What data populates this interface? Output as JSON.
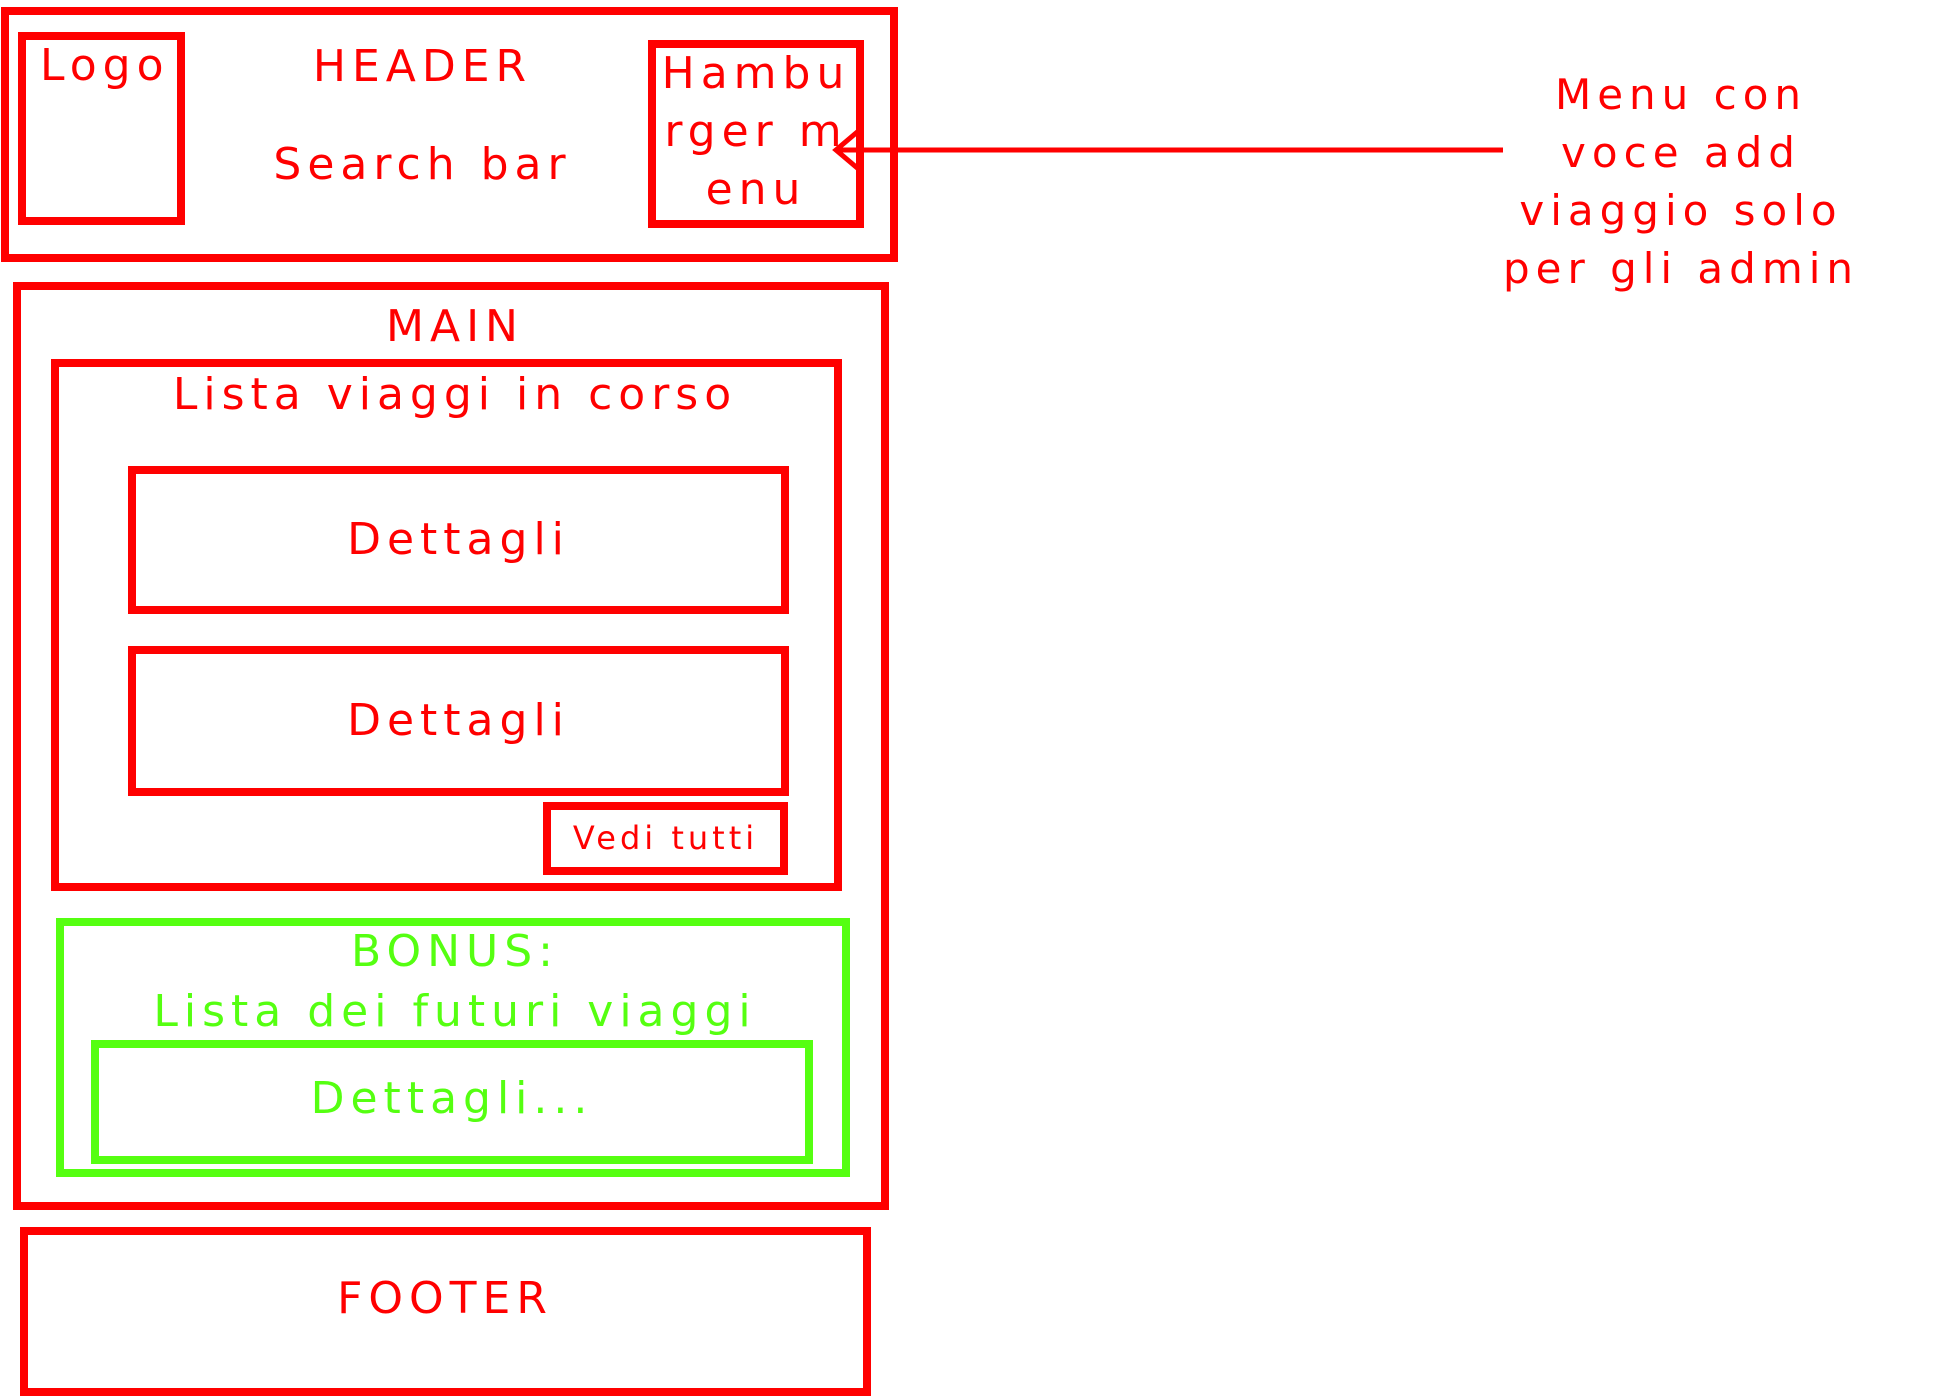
{
  "header": {
    "logo_label": "Logo",
    "title": "HEADER",
    "search_bar_label": "Search bar",
    "hamburger_label": "Hamburger menu"
  },
  "annotation": {
    "text": "Menu con voce add viaggio solo per gli admin"
  },
  "main": {
    "title": "MAIN",
    "current_trips": {
      "title": "Lista viaggi in corso",
      "items": [
        {
          "label": "Dettagli"
        },
        {
          "label": "Dettagli"
        }
      ],
      "see_all_label": "Vedi tutti"
    },
    "bonus": {
      "title": "BONUS:",
      "subtitle": "Lista dei futuri viaggi",
      "item_label": "Dettagli..."
    }
  },
  "footer": {
    "title": "FOOTER"
  },
  "colors": {
    "primary_outline": "#ff0000",
    "bonus_outline": "#55ff11"
  }
}
